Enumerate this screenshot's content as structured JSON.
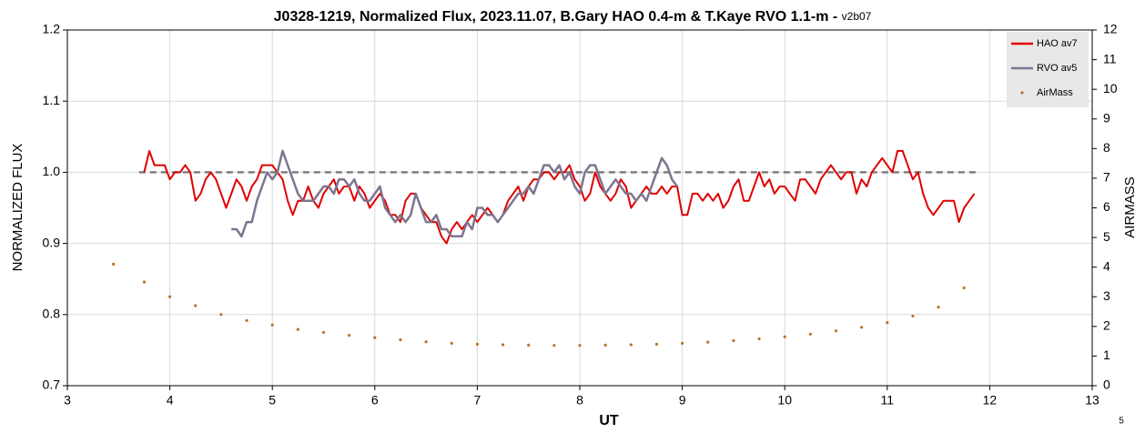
{
  "chart_data": {
    "type": "line",
    "title": "J0328-1219, Normalized Flux, 2023.11.07, B.Gary HAO 0.4-m & T.Kaye RVO 1.1-m - ",
    "version": "v2b07",
    "page_number": "5",
    "x_label": "UT",
    "y_label": "NORMALIZED FLUX",
    "y2_label": "AIRMASS",
    "xlim": [
      3,
      13
    ],
    "xticks": [
      3,
      4,
      5,
      6,
      7,
      8,
      9,
      10,
      11,
      12,
      13
    ],
    "ylim": [
      0.7,
      1.2
    ],
    "yticks": [
      0.7,
      0.8,
      0.9,
      {
        "value": 1,
        "label": "1.0"
      },
      1.1,
      1.2
    ],
    "y2lim": [
      0,
      12
    ],
    "y2ticks": [
      0,
      1,
      2,
      3,
      4,
      5,
      6,
      7,
      8,
      9,
      10,
      11,
      12
    ],
    "grid": true,
    "legend": "top-right",
    "reference_line": {
      "value": 1,
      "x": [
        3.7,
        11.9
      ],
      "color": "#7f7f7f"
    },
    "series": [
      {
        "name": "HAO av7",
        "color": "#e00000",
        "style": "line",
        "x": [
          3.75,
          3.8,
          3.85,
          3.9,
          3.95,
          4,
          4.05,
          4.1,
          4.15,
          4.2,
          4.25,
          4.3,
          4.35,
          4.4,
          4.45,
          4.5,
          4.55,
          4.6,
          4.65,
          4.7,
          4.75,
          4.8,
          4.85,
          4.9,
          4.95,
          5,
          5.05,
          5.1,
          5.15,
          5.2,
          5.25,
          5.3,
          5.35,
          5.4,
          5.45,
          5.5,
          5.55,
          5.6,
          5.65,
          5.7,
          5.75,
          5.8,
          5.85,
          5.9,
          5.95,
          6,
          6.05,
          6.1,
          6.15,
          6.2,
          6.25,
          6.3,
          6.35,
          6.4,
          6.45,
          6.5,
          6.55,
          6.6,
          6.65,
          6.7,
          6.75,
          6.8,
          6.85,
          6.9,
          6.95,
          7,
          7.05,
          7.1,
          7.15,
          7.2,
          7.25,
          7.3,
          7.35,
          7.4,
          7.45,
          7.5,
          7.55,
          7.6,
          7.65,
          7.7,
          7.75,
          7.8,
          7.85,
          7.9,
          7.95,
          8,
          8.05,
          8.1,
          8.15,
          8.2,
          8.25,
          8.3,
          8.35,
          8.4,
          8.45,
          8.5,
          8.55,
          8.6,
          8.65,
          8.7,
          8.75,
          8.8,
          8.85,
          8.9,
          8.95,
          9,
          9.05,
          9.1,
          9.15,
          9.2,
          9.25,
          9.3,
          9.35,
          9.4,
          9.45,
          9.5,
          9.55,
          9.6,
          9.65,
          9.7,
          9.75,
          9.8,
          9.85,
          9.9,
          9.95,
          10,
          10.05,
          10.1,
          10.15,
          10.2,
          10.25,
          10.3,
          10.35,
          10.4,
          10.45,
          10.5,
          10.55,
          10.6,
          10.65,
          10.7,
          10.75,
          10.8,
          10.85,
          10.9,
          10.95,
          11,
          11.05,
          11.1,
          11.15,
          11.2,
          11.25,
          11.3,
          11.35,
          11.4,
          11.45,
          11.5,
          11.55,
          11.6,
          11.65,
          11.7,
          11.75,
          11.8,
          11.85
        ],
        "values": [
          1.0,
          1.03,
          1.01,
          1.01,
          1.01,
          0.99,
          1.0,
          1.0,
          1.01,
          1.0,
          0.96,
          0.97,
          0.99,
          1.0,
          0.99,
          0.97,
          0.95,
          0.97,
          0.99,
          0.98,
          0.96,
          0.98,
          0.99,
          1.01,
          1.01,
          1.01,
          1.0,
          0.99,
          0.96,
          0.94,
          0.96,
          0.96,
          0.98,
          0.96,
          0.95,
          0.97,
          0.98,
          0.99,
          0.97,
          0.98,
          0.98,
          0.96,
          0.98,
          0.97,
          0.95,
          0.96,
          0.97,
          0.96,
          0.94,
          0.94,
          0.93,
          0.96,
          0.97,
          0.97,
          0.95,
          0.94,
          0.93,
          0.93,
          0.91,
          0.9,
          0.92,
          0.93,
          0.92,
          0.93,
          0.94,
          0.93,
          0.94,
          0.95,
          0.94,
          0.93,
          0.94,
          0.96,
          0.97,
          0.98,
          0.96,
          0.98,
          0.99,
          0.99,
          1.0,
          1.0,
          0.99,
          1.0,
          1.0,
          1.01,
          0.99,
          0.98,
          0.96,
          0.97,
          1.0,
          0.98,
          0.97,
          0.96,
          0.97,
          0.99,
          0.98,
          0.95,
          0.96,
          0.97,
          0.98,
          0.97,
          0.97,
          0.98,
          0.97,
          0.98,
          0.98,
          0.94,
          0.94,
          0.97,
          0.97,
          0.96,
          0.97,
          0.96,
          0.97,
          0.95,
          0.96,
          0.98,
          0.99,
          0.96,
          0.96,
          0.98,
          1.0,
          0.98,
          0.99,
          0.97,
          0.98,
          0.98,
          0.97,
          0.96,
          0.99,
          0.99,
          0.98,
          0.97,
          0.99,
          1.0,
          1.01,
          1.0,
          0.99,
          1.0,
          1.0,
          0.97,
          0.99,
          0.98,
          1.0,
          1.01,
          1.02,
          1.01,
          1.0,
          1.03,
          1.03,
          1.01,
          0.99,
          1.0,
          0.97,
          0.95,
          0.94,
          0.95,
          0.96,
          0.96,
          0.96,
          0.93,
          0.95,
          0.96,
          0.97
        ]
      },
      {
        "name": "RVO av5",
        "color": "#7f7490",
        "style": "line",
        "x": [
          4.6,
          4.65,
          4.7,
          4.75,
          4.8,
          4.85,
          4.9,
          4.95,
          5,
          5.05,
          5.1,
          5.15,
          5.2,
          5.25,
          5.3,
          5.35,
          5.4,
          5.45,
          5.5,
          5.55,
          5.6,
          5.65,
          5.7,
          5.75,
          5.8,
          5.85,
          5.9,
          5.95,
          6,
          6.05,
          6.1,
          6.15,
          6.2,
          6.25,
          6.3,
          6.35,
          6.4,
          6.45,
          6.5,
          6.55,
          6.6,
          6.65,
          6.7,
          6.75,
          6.8,
          6.85,
          6.9,
          6.95,
          7,
          7.05,
          7.1,
          7.15,
          7.2,
          7.25,
          7.3,
          7.35,
          7.4,
          7.45,
          7.5,
          7.55,
          7.6,
          7.65,
          7.7,
          7.75,
          7.8,
          7.85,
          7.9,
          7.95,
          8,
          8.05,
          8.1,
          8.15,
          8.2,
          8.25,
          8.3,
          8.35,
          8.4,
          8.45,
          8.5,
          8.55,
          8.6,
          8.65,
          8.7,
          8.75,
          8.8,
          8.85,
          8.9,
          8.95
        ],
        "values": [
          0.92,
          0.92,
          0.91,
          0.93,
          0.93,
          0.96,
          0.98,
          1.0,
          0.99,
          1.0,
          1.03,
          1.01,
          0.99,
          0.97,
          0.96,
          0.96,
          0.96,
          0.97,
          0.98,
          0.98,
          0.97,
          0.99,
          0.99,
          0.98,
          0.99,
          0.97,
          0.96,
          0.96,
          0.97,
          0.98,
          0.95,
          0.94,
          0.93,
          0.94,
          0.93,
          0.94,
          0.97,
          0.95,
          0.93,
          0.93,
          0.94,
          0.92,
          0.92,
          0.91,
          0.91,
          0.91,
          0.93,
          0.92,
          0.95,
          0.95,
          0.94,
          0.94,
          0.93,
          0.94,
          0.95,
          0.96,
          0.97,
          0.97,
          0.98,
          0.97,
          0.99,
          1.01,
          1.01,
          1.0,
          1.01,
          0.99,
          1.0,
          0.98,
          0.97,
          1.0,
          1.01,
          1.01,
          0.99,
          0.97,
          0.98,
          0.99,
          0.98,
          0.97,
          0.97,
          0.96,
          0.97,
          0.96,
          0.98,
          1.0,
          1.02,
          1.01,
          0.99,
          0.98
        ]
      },
      {
        "name": "AirMass",
        "color": "#b8732a",
        "style": "dots",
        "axis": "y2",
        "x": [
          3.45,
          3.75,
          4,
          4.25,
          4.5,
          4.75,
          5,
          5.25,
          5.5,
          5.75,
          6,
          6.25,
          6.5,
          6.75,
          7,
          7.25,
          7.5,
          7.75,
          8,
          8.25,
          8.5,
          8.75,
          9,
          9.25,
          9.5,
          9.75,
          10,
          10.25,
          10.5,
          10.75,
          11,
          11.25,
          11.5,
          11.75
        ],
        "values": [
          4.1,
          3.5,
          3.0,
          2.7,
          2.4,
          2.2,
          2.05,
          1.9,
          1.8,
          1.7,
          1.62,
          1.55,
          1.48,
          1.43,
          1.4,
          1.38,
          1.37,
          1.36,
          1.36,
          1.37,
          1.38,
          1.4,
          1.43,
          1.47,
          1.52,
          1.58,
          1.65,
          1.74,
          1.85,
          1.97,
          2.13,
          2.35,
          2.65,
          3.3
        ]
      }
    ]
  }
}
